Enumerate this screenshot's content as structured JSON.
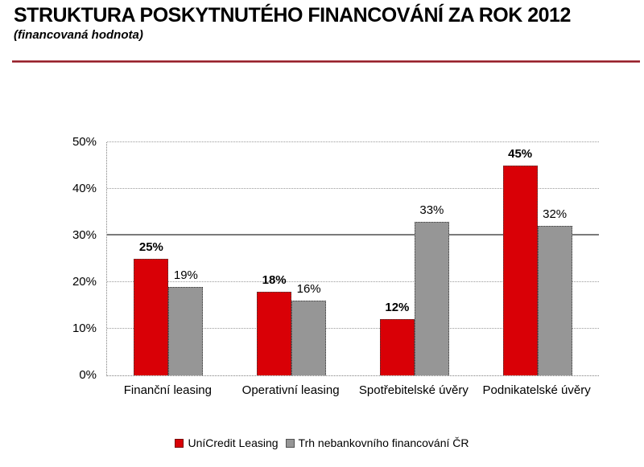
{
  "header": {
    "title": "STRUKTURA POSKYTNUTÉHO FINANCOVÁNÍ ZA ROK 2012",
    "subtitle": "(financovaná hodnota)",
    "divider_color": "#8f1722"
  },
  "chart_data": {
    "type": "bar",
    "title": "STRUKTURA POSKYTNUTÉHO FINANCOVÁNÍ ZA ROK 2012",
    "subtitle": "(financovaná hodnota)",
    "categories": [
      "Finanční leasing",
      "Operativní leasing",
      "Spotřebitelské úvěry",
      "Podnikatelské úvěry"
    ],
    "series": [
      {
        "name": "UníCredit Leasing",
        "color": "#d90006",
        "values": [
          25,
          18,
          12,
          45
        ],
        "label_bold": true
      },
      {
        "name": "Trh nebankovního financování ČR",
        "color": "#969696",
        "values": [
          19,
          16,
          33,
          32
        ],
        "label_bold": false
      }
    ],
    "value_labels": [
      [
        "25%",
        "18%",
        "12%",
        "45%"
      ],
      [
        "19%",
        "16%",
        "33%",
        "32%"
      ]
    ],
    "xlabel": "",
    "ylabel": "",
    "ylim": [
      0,
      50
    ],
    "ytick_step": 10,
    "ytick_labels": [
      "0%",
      "10%",
      "20%",
      "30%",
      "40%",
      "50%"
    ],
    "grid": "horizontal-dotted",
    "solid_gridline_at": 30,
    "legend_position": "bottom"
  }
}
